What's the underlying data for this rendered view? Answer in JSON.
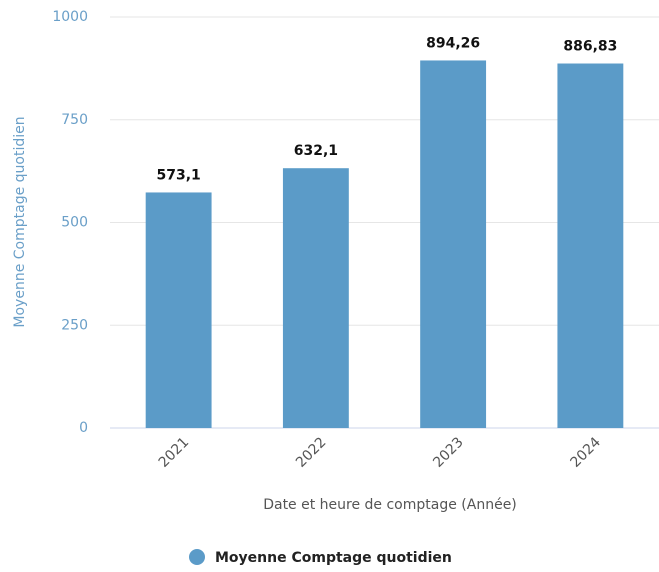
{
  "chart_data": {
    "type": "bar",
    "categories": [
      "2021",
      "2022",
      "2023",
      "2024"
    ],
    "series": [
      {
        "name": "Moyenne Comptage quotidien",
        "color": "#5b9bc8",
        "values": [
          573.1,
          632.1,
          894.26,
          886.83
        ],
        "value_labels": [
          "573,1",
          "632,1",
          "894,26",
          "886,83"
        ]
      }
    ],
    "ylim": [
      0,
      1000
    ],
    "yticks": [
      0,
      250,
      500,
      750,
      1000
    ],
    "grid": true,
    "x_label": "Date et heure de comptage (Année)",
    "y_label": "Moyenne Comptage quotidien",
    "legend": "bottom"
  }
}
